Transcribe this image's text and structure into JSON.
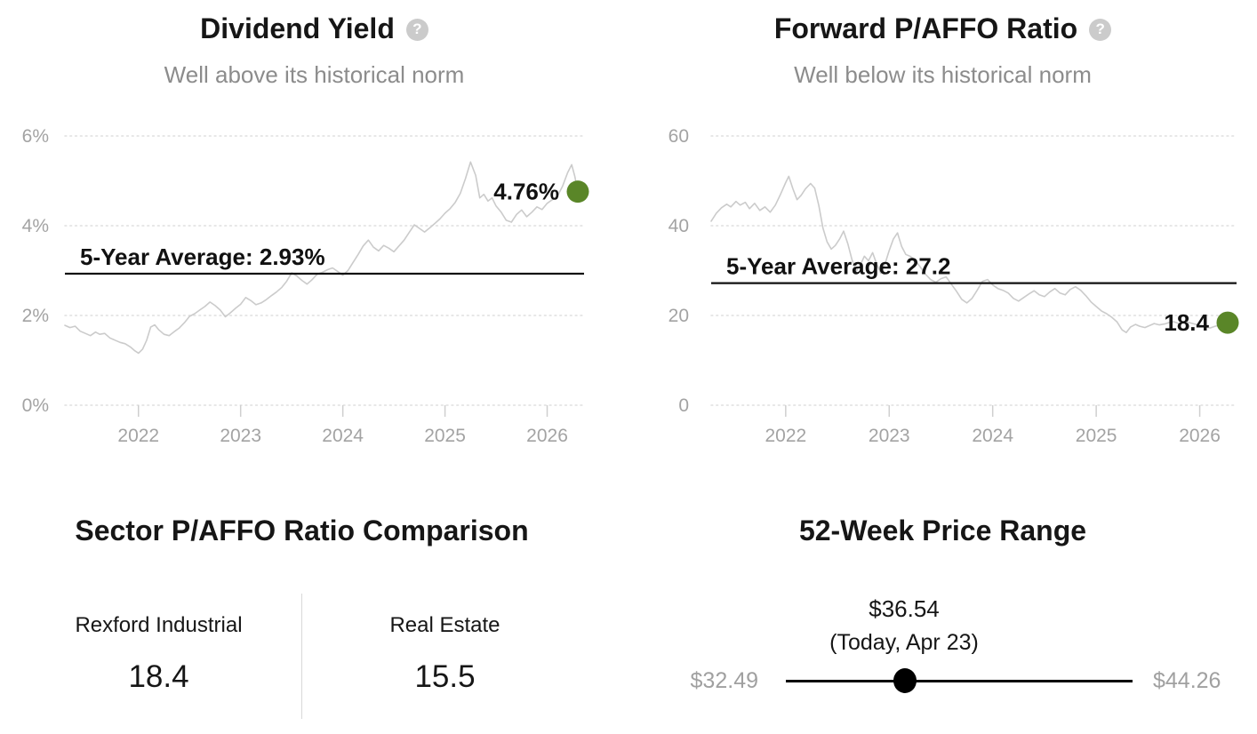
{
  "chart_data": [
    {
      "type": "line",
      "title": "Dividend Yield",
      "subtitle": "Well above its historical norm",
      "help_icon": "?",
      "average_label": "5-Year Average: 2.93%",
      "average_value": 2.93,
      "current_label": "4.76%",
      "current_value": 4.76,
      "accent_color": "#5a8628",
      "line_color": "#cbcbcb",
      "legend_position": "none",
      "grid": "dotted-horizontal",
      "ylim": [
        0,
        6
      ],
      "xlim": [
        2021.28,
        2026.3
      ],
      "yticks": [
        {
          "value": 0,
          "label": "0%"
        },
        {
          "value": 2,
          "label": "2%"
        },
        {
          "value": 4,
          "label": "4%"
        },
        {
          "value": 6,
          "label": "6%"
        }
      ],
      "xticks": [
        {
          "value": 2022,
          "label": "2022"
        },
        {
          "value": 2023,
          "label": "2023"
        },
        {
          "value": 2024,
          "label": "2024"
        },
        {
          "value": 2025,
          "label": "2025"
        },
        {
          "value": 2026,
          "label": "2026"
        }
      ],
      "series": [
        [
          2021.28,
          1.78
        ],
        [
          2021.33,
          1.73
        ],
        [
          2021.38,
          1.76
        ],
        [
          2021.43,
          1.65
        ],
        [
          2021.48,
          1.6
        ],
        [
          2021.53,
          1.55
        ],
        [
          2021.58,
          1.63
        ],
        [
          2021.62,
          1.58
        ],
        [
          2021.67,
          1.6
        ],
        [
          2021.72,
          1.5
        ],
        [
          2021.77,
          1.45
        ],
        [
          2021.82,
          1.4
        ],
        [
          2021.87,
          1.37
        ],
        [
          2021.92,
          1.3
        ],
        [
          2021.96,
          1.22
        ],
        [
          2022.0,
          1.16
        ],
        [
          2022.04,
          1.25
        ],
        [
          2022.08,
          1.45
        ],
        [
          2022.12,
          1.74
        ],
        [
          2022.16,
          1.79
        ],
        [
          2022.2,
          1.68
        ],
        [
          2022.25,
          1.58
        ],
        [
          2022.3,
          1.55
        ],
        [
          2022.35,
          1.64
        ],
        [
          2022.4,
          1.72
        ],
        [
          2022.45,
          1.84
        ],
        [
          2022.5,
          1.98
        ],
        [
          2022.55,
          2.04
        ],
        [
          2022.6,
          2.12
        ],
        [
          2022.65,
          2.2
        ],
        [
          2022.7,
          2.3
        ],
        [
          2022.75,
          2.22
        ],
        [
          2022.8,
          2.12
        ],
        [
          2022.85,
          1.97
        ],
        [
          2022.9,
          2.06
        ],
        [
          2022.95,
          2.16
        ],
        [
          2023.0,
          2.25
        ],
        [
          2023.05,
          2.4
        ],
        [
          2023.1,
          2.33
        ],
        [
          2023.15,
          2.24
        ],
        [
          2023.2,
          2.28
        ],
        [
          2023.25,
          2.35
        ],
        [
          2023.3,
          2.44
        ],
        [
          2023.35,
          2.52
        ],
        [
          2023.4,
          2.62
        ],
        [
          2023.45,
          2.76
        ],
        [
          2023.5,
          2.95
        ],
        [
          2023.55,
          2.88
        ],
        [
          2023.6,
          2.78
        ],
        [
          2023.65,
          2.7
        ],
        [
          2023.7,
          2.8
        ],
        [
          2023.75,
          2.92
        ],
        [
          2023.8,
          2.96
        ],
        [
          2023.85,
          3.02
        ],
        [
          2023.9,
          3.06
        ],
        [
          2023.95,
          2.98
        ],
        [
          2024.0,
          2.9
        ],
        [
          2024.05,
          3.0
        ],
        [
          2024.1,
          3.18
        ],
        [
          2024.15,
          3.36
        ],
        [
          2024.2,
          3.55
        ],
        [
          2024.25,
          3.68
        ],
        [
          2024.3,
          3.52
        ],
        [
          2024.35,
          3.44
        ],
        [
          2024.4,
          3.56
        ],
        [
          2024.45,
          3.5
        ],
        [
          2024.5,
          3.42
        ],
        [
          2024.55,
          3.55
        ],
        [
          2024.6,
          3.68
        ],
        [
          2024.65,
          3.85
        ],
        [
          2024.7,
          4.02
        ],
        [
          2024.75,
          3.94
        ],
        [
          2024.8,
          3.86
        ],
        [
          2024.85,
          3.95
        ],
        [
          2024.9,
          4.05
        ],
        [
          2024.95,
          4.15
        ],
        [
          2025.0,
          4.28
        ],
        [
          2025.05,
          4.38
        ],
        [
          2025.1,
          4.52
        ],
        [
          2025.15,
          4.72
        ],
        [
          2025.2,
          5.05
        ],
        [
          2025.25,
          5.42
        ],
        [
          2025.3,
          5.12
        ],
        [
          2025.34,
          4.62
        ],
        [
          2025.38,
          4.7
        ],
        [
          2025.42,
          4.55
        ],
        [
          2025.46,
          4.62
        ],
        [
          2025.5,
          4.44
        ],
        [
          2025.55,
          4.3
        ],
        [
          2025.6,
          4.12
        ],
        [
          2025.65,
          4.08
        ],
        [
          2025.7,
          4.25
        ],
        [
          2025.75,
          4.35
        ],
        [
          2025.8,
          4.2
        ],
        [
          2025.85,
          4.3
        ],
        [
          2025.9,
          4.42
        ],
        [
          2025.95,
          4.36
        ],
        [
          2026.0,
          4.5
        ],
        [
          2026.05,
          4.58
        ],
        [
          2026.1,
          4.66
        ],
        [
          2026.15,
          4.88
        ],
        [
          2026.2,
          5.18
        ],
        [
          2026.24,
          5.36
        ],
        [
          2026.27,
          5.1
        ],
        [
          2026.3,
          4.76
        ]
      ]
    },
    {
      "type": "line",
      "title": "Forward P/AFFO Ratio",
      "subtitle": "Well below its historical norm",
      "help_icon": "?",
      "average_label": "5-Year Average: 27.2",
      "average_value": 27.2,
      "current_label": "18.4",
      "current_value": 18.4,
      "accent_color": "#5a8628",
      "line_color": "#cbcbcb",
      "legend_position": "none",
      "grid": "dotted-horizontal",
      "ylim": [
        0,
        60
      ],
      "xlim": [
        2021.28,
        2026.27
      ],
      "yticks": [
        {
          "value": 0,
          "label": "0"
        },
        {
          "value": 20,
          "label": "20"
        },
        {
          "value": 40,
          "label": "40"
        },
        {
          "value": 60,
          "label": "60"
        }
      ],
      "xticks": [
        {
          "value": 2022,
          "label": "2022"
        },
        {
          "value": 2023,
          "label": "2023"
        },
        {
          "value": 2024,
          "label": "2024"
        },
        {
          "value": 2025,
          "label": "2025"
        },
        {
          "value": 2026,
          "label": "2026"
        }
      ],
      "series": [
        [
          2021.28,
          41.0
        ],
        [
          2021.33,
          42.8
        ],
        [
          2021.38,
          44.0
        ],
        [
          2021.43,
          44.8
        ],
        [
          2021.47,
          44.2
        ],
        [
          2021.52,
          45.4
        ],
        [
          2021.56,
          44.6
        ],
        [
          2021.61,
          45.2
        ],
        [
          2021.65,
          43.8
        ],
        [
          2021.7,
          45.0
        ],
        [
          2021.75,
          43.4
        ],
        [
          2021.8,
          44.2
        ],
        [
          2021.85,
          43.0
        ],
        [
          2021.9,
          44.6
        ],
        [
          2021.95,
          47.0
        ],
        [
          2022.0,
          49.6
        ],
        [
          2022.03,
          51.0
        ],
        [
          2022.07,
          48.2
        ],
        [
          2022.11,
          45.8
        ],
        [
          2022.15,
          46.8
        ],
        [
          2022.19,
          48.2
        ],
        [
          2022.24,
          49.4
        ],
        [
          2022.28,
          48.4
        ],
        [
          2022.32,
          44.5
        ],
        [
          2022.36,
          39.5
        ],
        [
          2022.4,
          36.4
        ],
        [
          2022.44,
          34.8
        ],
        [
          2022.48,
          35.6
        ],
        [
          2022.52,
          37.0
        ],
        [
          2022.56,
          38.8
        ],
        [
          2022.6,
          36.0
        ],
        [
          2022.64,
          32.5
        ],
        [
          2022.68,
          29.8
        ],
        [
          2022.72,
          31.2
        ],
        [
          2022.76,
          33.2
        ],
        [
          2022.8,
          32.2
        ],
        [
          2022.84,
          34.0
        ],
        [
          2022.88,
          31.4
        ],
        [
          2022.92,
          29.4
        ],
        [
          2022.96,
          31.5
        ],
        [
          2023.0,
          34.5
        ],
        [
          2023.04,
          37.0
        ],
        [
          2023.08,
          38.4
        ],
        [
          2023.12,
          35.4
        ],
        [
          2023.16,
          33.6
        ],
        [
          2023.2,
          33.2
        ],
        [
          2023.25,
          32.4
        ],
        [
          2023.3,
          30.8
        ],
        [
          2023.35,
          29.2
        ],
        [
          2023.4,
          28.0
        ],
        [
          2023.45,
          27.4
        ],
        [
          2023.5,
          28.2
        ],
        [
          2023.55,
          28.6
        ],
        [
          2023.6,
          27.0
        ],
        [
          2023.65,
          25.4
        ],
        [
          2023.7,
          23.6
        ],
        [
          2023.75,
          22.8
        ],
        [
          2023.8,
          23.8
        ],
        [
          2023.85,
          25.6
        ],
        [
          2023.9,
          27.6
        ],
        [
          2023.95,
          28.0
        ],
        [
          2024.0,
          26.8
        ],
        [
          2024.05,
          26.0
        ],
        [
          2024.1,
          25.6
        ],
        [
          2024.15,
          25.0
        ],
        [
          2024.2,
          23.8
        ],
        [
          2024.25,
          23.2
        ],
        [
          2024.3,
          24.0
        ],
        [
          2024.35,
          24.8
        ],
        [
          2024.4,
          25.5
        ],
        [
          2024.45,
          24.6
        ],
        [
          2024.5,
          24.2
        ],
        [
          2024.55,
          25.2
        ],
        [
          2024.6,
          26.0
        ],
        [
          2024.65,
          25.0
        ],
        [
          2024.7,
          24.6
        ],
        [
          2024.75,
          25.8
        ],
        [
          2024.8,
          26.4
        ],
        [
          2024.85,
          25.6
        ],
        [
          2024.9,
          24.4
        ],
        [
          2024.95,
          23.0
        ],
        [
          2025.0,
          22.0
        ],
        [
          2025.05,
          21.0
        ],
        [
          2025.1,
          20.4
        ],
        [
          2025.15,
          19.6
        ],
        [
          2025.2,
          18.6
        ],
        [
          2025.25,
          16.8
        ],
        [
          2025.29,
          16.2
        ],
        [
          2025.33,
          17.4
        ],
        [
          2025.38,
          18.0
        ],
        [
          2025.42,
          17.6
        ],
        [
          2025.47,
          17.3
        ],
        [
          2025.52,
          17.8
        ],
        [
          2025.56,
          18.2
        ],
        [
          2025.61,
          17.9
        ],
        [
          2025.66,
          18.1
        ],
        [
          2025.7,
          18.4
        ],
        [
          2025.75,
          18.6
        ],
        [
          2025.8,
          18.2
        ],
        [
          2025.85,
          18.7
        ],
        [
          2025.9,
          18.4
        ],
        [
          2025.95,
          18.1
        ],
        [
          2026.0,
          17.8
        ],
        [
          2026.05,
          17.5
        ],
        [
          2026.1,
          17.2
        ],
        [
          2026.15,
          17.6
        ],
        [
          2026.2,
          17.9
        ],
        [
          2026.24,
          18.1
        ],
        [
          2026.27,
          18.4
        ]
      ]
    },
    {
      "type": "table",
      "title": "Sector P/AFFO Ratio Comparison",
      "columns": [
        {
          "label": "Rexford Industrial",
          "value": "18.4"
        },
        {
          "label": "Real Estate",
          "value": "15.5"
        }
      ]
    },
    {
      "type": "range",
      "title": "52-Week Price Range",
      "min_label": "$32.49",
      "min_value": 32.49,
      "max_label": "$44.26",
      "max_value": 44.26,
      "current_label": "$36.54",
      "current_sub_label": "(Today, Apr 23)",
      "current_value": 36.54,
      "marker_color": "#000000",
      "muted_label_color": "#a0a0a0"
    }
  ]
}
